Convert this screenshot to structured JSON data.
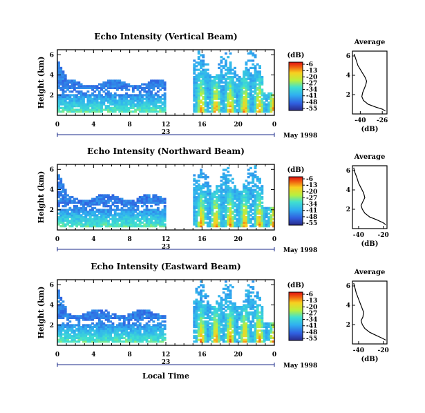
{
  "chart_data": [
    {
      "type": "heatmap",
      "title": "Echo Intensity (Vertical Beam)",
      "ylabel": "Height (km)",
      "xlim": [
        0,
        24
      ],
      "ylim": [
        0,
        6.5
      ],
      "xticks": [
        "0",
        "4",
        "8",
        "12",
        "16",
        "20",
        "0"
      ],
      "yticks": [
        "2",
        "4",
        "6"
      ],
      "date_label": "23",
      "month_label": "May 1998",
      "colorbar": {
        "unit": "(dB)",
        "ticks": [
          "-6",
          "-13",
          "-20",
          "-27",
          "-34",
          "-41",
          "-48",
          "-55"
        ]
      },
      "data_gap_hours": [
        11.8,
        15.0
      ],
      "profile": {
        "title": "Average",
        "xlabel": "(dB)",
        "xticks": [
          "-40",
          "-26"
        ],
        "yticks": [
          "2",
          "4",
          "6"
        ],
        "xlim": [
          -45,
          -23
        ],
        "points": [
          [
            -44,
            6.2
          ],
          [
            -43.5,
            6.0
          ],
          [
            -42.5,
            5.5
          ],
          [
            -41.5,
            5.0
          ],
          [
            -40,
            4.6
          ],
          [
            -38.5,
            4.2
          ],
          [
            -37,
            3.8
          ],
          [
            -36,
            3.4
          ],
          [
            -36.5,
            3.0
          ],
          [
            -37.5,
            2.6
          ],
          [
            -38.5,
            2.2
          ],
          [
            -39,
            1.8
          ],
          [
            -38,
            1.4
          ],
          [
            -35,
            1.0
          ],
          [
            -30,
            0.7
          ],
          [
            -26,
            0.5
          ],
          [
            -24,
            0.3
          ]
        ]
      }
    },
    {
      "type": "heatmap",
      "title": "Echo Intensity (Northward Beam)",
      "ylabel": "Height (km)",
      "xlim": [
        0,
        24
      ],
      "ylim": [
        0,
        6.5
      ],
      "xticks": [
        "0",
        "4",
        "8",
        "12",
        "16",
        "20",
        "0"
      ],
      "yticks": [
        "2",
        "4",
        "6"
      ],
      "date_label": "23",
      "month_label": "May 1998",
      "colorbar": {
        "unit": "(dB)",
        "ticks": [
          "-6",
          "-13",
          "-20",
          "-27",
          "-34",
          "-41",
          "-48",
          "-55"
        ]
      },
      "data_gap_hours": [
        11.8,
        15.0
      ],
      "profile": {
        "title": "Average",
        "xlabel": "(dB)",
        "xticks": [
          "-40",
          "-20"
        ],
        "yticks": [
          "2",
          "4",
          "6"
        ],
        "xlim": [
          -45,
          -17
        ],
        "points": [
          [
            -44,
            6.3
          ],
          [
            -43,
            5.8
          ],
          [
            -41.5,
            5.3
          ],
          [
            -40,
            4.7
          ],
          [
            -38,
            4.2
          ],
          [
            -36,
            3.7
          ],
          [
            -35,
            3.2
          ],
          [
            -36.5,
            2.8
          ],
          [
            -38,
            2.4
          ],
          [
            -37,
            2.0
          ],
          [
            -35,
            1.6
          ],
          [
            -31,
            1.2
          ],
          [
            -25,
            0.9
          ],
          [
            -20,
            0.6
          ],
          [
            -18,
            0.4
          ]
        ]
      }
    },
    {
      "type": "heatmap",
      "title": "Echo Intensity (Eastward Beam)",
      "ylabel": "Height (km)",
      "xlabel": "Local Time",
      "xlim": [
        0,
        24
      ],
      "ylim": [
        0,
        6.5
      ],
      "xticks": [
        "0",
        "4",
        "8",
        "12",
        "16",
        "20",
        "0"
      ],
      "yticks": [
        "2",
        "4",
        "6"
      ],
      "date_label": "23",
      "month_label": "May 1998",
      "colorbar": {
        "unit": "(dB)",
        "ticks": [
          "-6",
          "-13",
          "-20",
          "-27",
          "-34",
          "-41",
          "-48",
          "-55"
        ]
      },
      "data_gap_hours": [
        11.8,
        15.0
      ],
      "profile": {
        "title": "Average",
        "xlabel": "(dB)",
        "xticks": [
          "-40",
          "-20"
        ],
        "yticks": [
          "2",
          "4",
          "6"
        ],
        "xlim": [
          -45,
          -17
        ],
        "points": [
          [
            -44,
            6.3
          ],
          [
            -43,
            5.8
          ],
          [
            -42,
            5.3
          ],
          [
            -40.5,
            4.8
          ],
          [
            -39,
            4.3
          ],
          [
            -37.5,
            3.8
          ],
          [
            -36,
            3.3
          ],
          [
            -36.5,
            2.8
          ],
          [
            -38,
            2.4
          ],
          [
            -37,
            2.0
          ],
          [
            -35,
            1.6
          ],
          [
            -31,
            1.2
          ],
          [
            -26,
            0.9
          ],
          [
            -21,
            0.6
          ],
          [
            -18,
            0.4
          ]
        ]
      }
    }
  ]
}
